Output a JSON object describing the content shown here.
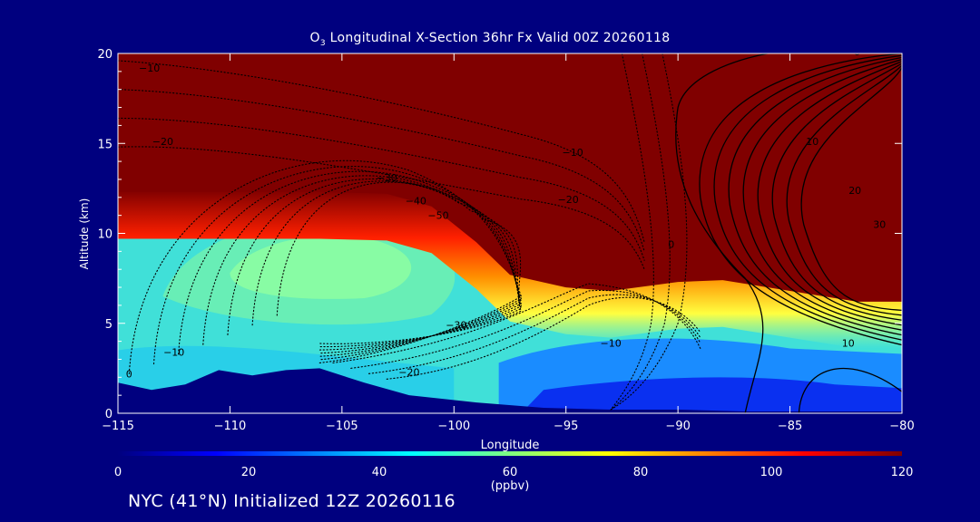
{
  "header": {
    "title_prefix": "O",
    "title_sub": "3",
    "title_rest": " Longitudinal X-Section 36hr  Fx Valid 00Z 20260118"
  },
  "footer": {
    "text": "NYC (41°N) Initialized 12Z 20260116"
  },
  "chart_data": {
    "type": "heatmap",
    "xlabel": "Longitude",
    "ylabel": "Altitude (km)",
    "xlim": [
      -115,
      -80
    ],
    "ylim": [
      0,
      20
    ],
    "x_ticks": [
      -115,
      -110,
      -105,
      -100,
      -95,
      -90,
      -85,
      -80
    ],
    "x_tick_labels": [
      "−115",
      "−110",
      "−105",
      "−100",
      "−95",
      "−90",
      "−85",
      "−80"
    ],
    "y_ticks": [
      0,
      5,
      10,
      15,
      20
    ],
    "y_tick_labels": [
      "0",
      "5",
      "10",
      "15",
      "20"
    ],
    "colorbar": {
      "min": 0,
      "max": 120,
      "ticks": [
        0,
        20,
        40,
        60,
        80,
        100,
        120
      ],
      "tick_labels": [
        "0",
        "20",
        "40",
        "60",
        "80",
        "100",
        "120"
      ],
      "unit_label": "(ppbv)",
      "colors": [
        "#00007f",
        "#0000ff",
        "#0080ff",
        "#00ffff",
        "#80ff80",
        "#ffff00",
        "#ff8000",
        "#ff0000",
        "#800000"
      ]
    },
    "tropopause_height_km": [
      {
        "lon": -115,
        "alt": 12.3
      },
      {
        "lon": -110,
        "alt": 12.3
      },
      {
        "lon": -106,
        "alt": 12.3
      },
      {
        "lon": -103,
        "alt": 12.2
      },
      {
        "lon": -101,
        "alt": 11.5
      },
      {
        "lon": -99,
        "alt": 9.5
      },
      {
        "lon": -97.5,
        "alt": 7.7
      },
      {
        "lon": -95,
        "alt": 7.0
      },
      {
        "lon": -93,
        "alt": 6.8
      },
      {
        "lon": -90,
        "alt": 7.3
      },
      {
        "lon": -88,
        "alt": 7.4
      },
      {
        "lon": -85,
        "alt": 6.8
      },
      {
        "lon": -82,
        "alt": 6.2
      },
      {
        "lon": -80,
        "alt": 6.2
      }
    ],
    "terrain_height_km": [
      {
        "lon": -115,
        "alt": 1.7
      },
      {
        "lon": -113.5,
        "alt": 1.3
      },
      {
        "lon": -112,
        "alt": 1.6
      },
      {
        "lon": -110.5,
        "alt": 2.4
      },
      {
        "lon": -109,
        "alt": 2.1
      },
      {
        "lon": -107.5,
        "alt": 2.4
      },
      {
        "lon": -106,
        "alt": 2.5
      },
      {
        "lon": -104,
        "alt": 1.7
      },
      {
        "lon": -102,
        "alt": 1.0
      },
      {
        "lon": -99,
        "alt": 0.6
      },
      {
        "lon": -96,
        "alt": 0.3
      },
      {
        "lon": -93,
        "alt": 0.2
      },
      {
        "lon": -90,
        "alt": 0.2
      },
      {
        "lon": -87,
        "alt": 0.1
      },
      {
        "lon": -80,
        "alt": 0.1
      }
    ],
    "contour_labels": [
      {
        "text": "−10",
        "lon": -113.6,
        "alt": 19.0
      },
      {
        "text": "−20",
        "lon": -113.0,
        "alt": 14.9
      },
      {
        "text": "−30",
        "lon": -103.0,
        "alt": 12.9
      },
      {
        "text": "−40",
        "lon": -101.7,
        "alt": 11.6
      },
      {
        "text": "−50",
        "lon": -100.7,
        "alt": 10.8
      },
      {
        "text": "−10",
        "lon": -94.7,
        "alt": 14.3
      },
      {
        "text": "−20",
        "lon": -94.9,
        "alt": 11.7
      },
      {
        "text": "−30",
        "lon": -99.9,
        "alt": 4.7
      },
      {
        "text": "−20",
        "lon": -102.0,
        "alt": 2.1
      },
      {
        "text": "−10",
        "lon": -112.5,
        "alt": 3.2
      },
      {
        "text": "0",
        "lon": -114.5,
        "alt": 2.0
      },
      {
        "text": "−10",
        "lon": -93.0,
        "alt": 3.7
      },
      {
        "text": "0",
        "lon": -82.0,
        "alt": 19.9
      },
      {
        "text": "10",
        "lon": -84.0,
        "alt": 14.9
      },
      {
        "text": "20",
        "lon": -82.1,
        "alt": 12.2
      },
      {
        "text": "30",
        "lon": -81.0,
        "alt": 10.3
      },
      {
        "text": "10",
        "lon": -82.4,
        "alt": 3.7
      },
      {
        "text": "0",
        "lon": -90.3,
        "alt": 9.2
      }
    ]
  }
}
